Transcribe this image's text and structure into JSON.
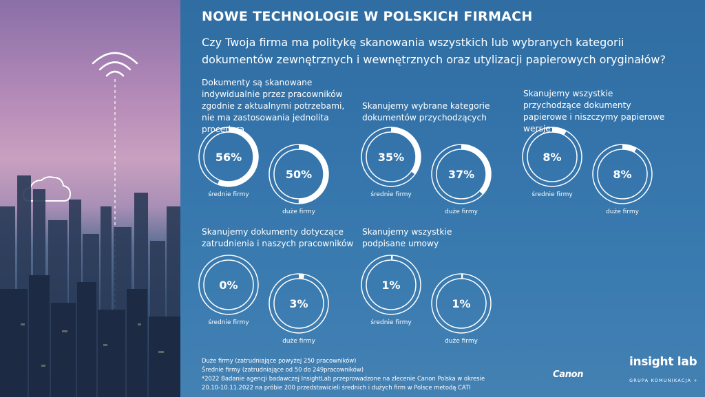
{
  "header": {
    "title": "NOWE TECHNOLOGIE W POLSKICH FIRMACH",
    "question": "Czy Twoja firma ma politykę skanowania wszystkich lub wybranych kategorii dokumentów zewnętrznych i wewnętrznych oraz utylizacji papierowych oryginałów?"
  },
  "captions": {
    "medium": "średnie firmy",
    "large": "duże firmy"
  },
  "chart_data": [
    {
      "type": "pie",
      "variant": "donut",
      "title": "Dokumenty są skanowane indywidualnie przez pracowników zgodnie z aktualnymi potrzebami, nie ma zastosowania jednolita procedura",
      "categories": [
        "średnie firmy",
        "duże firmy"
      ],
      "values": [
        56,
        50
      ],
      "labels": [
        "56%",
        "50%"
      ]
    },
    {
      "type": "pie",
      "variant": "donut",
      "title": "Skanujemy wybrane kategorie dokumentów przychodzących",
      "categories": [
        "średnie firmy",
        "duże firmy"
      ],
      "values": [
        35,
        37
      ],
      "labels": [
        "35%",
        "37%"
      ]
    },
    {
      "type": "pie",
      "variant": "donut",
      "title": "Skanujemy wszystkie przychodzące dokumenty papierowe i niszczymy papierowe wersje",
      "categories": [
        "średnie firmy",
        "duże firmy"
      ],
      "values": [
        8,
        8
      ],
      "labels": [
        "8%",
        "8%"
      ]
    },
    {
      "type": "pie",
      "variant": "donut",
      "title": "Skanujemy dokumenty dotyczące zatrudnienia i naszych pracowników",
      "categories": [
        "średnie firmy",
        "duże firmy"
      ],
      "values": [
        0,
        3
      ],
      "labels": [
        "0%",
        "3%"
      ]
    },
    {
      "type": "pie",
      "variant": "donut",
      "title": "Skanujemy wszystkie podpisane umowy",
      "categories": [
        "średnie firmy",
        "duże firmy"
      ],
      "values": [
        1,
        1
      ],
      "labels": [
        "1%",
        "1%"
      ]
    }
  ],
  "footnotes": [
    "Duże firmy (zatrudniające powyżej 250 pracowników)",
    "Średnie firmy (zatrudniające od 50 do 249pracowników)",
    "*2022 Badanie agencji badawczej InsightLab przeprowadzone na zlecenie Canon Polska w okresie",
    "20.10-10.11.2022 na próbie 200 przedstawicieli średnich i dużych firm w Polsce metodą CATI"
  ],
  "logos": {
    "canon": "Canon",
    "insight": "insight lab",
    "group": "GRUPA KOMUNIKACJA +"
  },
  "colors": {
    "panel": "#3575ab",
    "ring_track": "#ffffff",
    "ring_fill": "#ffffff"
  }
}
